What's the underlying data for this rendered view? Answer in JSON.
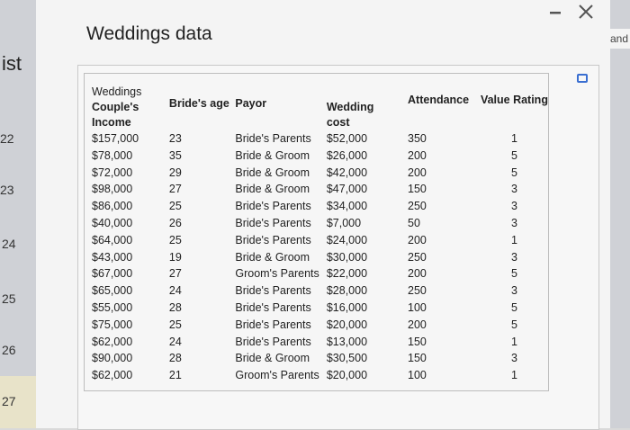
{
  "background": {
    "left_heading": "ist",
    "left_numbers": [
      "22",
      "23",
      "24",
      "25",
      "26",
      "27"
    ],
    "right_peek": "and"
  },
  "window": {
    "minimize_icon": "minimize-icon",
    "close_icon": "close-icon"
  },
  "dialog": {
    "title": "Weddings data"
  },
  "table": {
    "headers": {
      "income": [
        "Weddings",
        "Couple's",
        "Income"
      ],
      "age": "Bride's age",
      "payor": "Payor",
      "cost": [
        "Wedding",
        "cost"
      ],
      "attendance": "Attendance",
      "rating": "Value Rating"
    },
    "rows": [
      {
        "income": "$157,000",
        "age": "23",
        "payor": "Bride's Parents",
        "cost": "$52,000",
        "attendance": "350",
        "rating": "1"
      },
      {
        "income": "$78,000",
        "age": "35",
        "payor": "Bride & Groom",
        "cost": "$26,000",
        "attendance": "200",
        "rating": "5"
      },
      {
        "income": "$72,000",
        "age": "29",
        "payor": "Bride & Groom",
        "cost": "$42,000",
        "attendance": "200",
        "rating": "5"
      },
      {
        "income": "$98,000",
        "age": "27",
        "payor": "Bride & Groom",
        "cost": "$47,000",
        "attendance": "150",
        "rating": "3"
      },
      {
        "income": "$86,000",
        "age": "25",
        "payor": "Bride's Parents",
        "cost": "$34,000",
        "attendance": "250",
        "rating": "3"
      },
      {
        "income": "$40,000",
        "age": "26",
        "payor": "Bride's Parents",
        "cost": "$7,000",
        "attendance": "50",
        "rating": "3"
      },
      {
        "income": "$64,000",
        "age": "25",
        "payor": "Bride's Parents",
        "cost": "$24,000",
        "attendance": "200",
        "rating": "1"
      },
      {
        "income": "$43,000",
        "age": "19",
        "payor": "Bride & Groom",
        "cost": "$30,000",
        "attendance": "250",
        "rating": "3"
      },
      {
        "income": "$67,000",
        "age": "27",
        "payor": "Groom's Parents",
        "cost": "$22,000",
        "attendance": "200",
        "rating": "5"
      },
      {
        "income": "$65,000",
        "age": "24",
        "payor": "Bride's Parents",
        "cost": "$28,000",
        "attendance": "250",
        "rating": "3"
      },
      {
        "income": "$55,000",
        "age": "28",
        "payor": "Bride's Parents",
        "cost": "$16,000",
        "attendance": "100",
        "rating": "5"
      },
      {
        "income": "$75,000",
        "age": "25",
        "payor": "Bride's Parents",
        "cost": "$20,000",
        "attendance": "200",
        "rating": "5"
      },
      {
        "income": "$62,000",
        "age": "24",
        "payor": "Bride's Parents",
        "cost": "$13,000",
        "attendance": "150",
        "rating": "1"
      },
      {
        "income": "$90,000",
        "age": "28",
        "payor": "Bride & Groom",
        "cost": "$30,500",
        "attendance": "150",
        "rating": "3"
      },
      {
        "income": "$62,000",
        "age": "21",
        "payor": "Groom's Parents",
        "cost": "$20,000",
        "attendance": "100",
        "rating": "1"
      }
    ]
  },
  "panel": {
    "expand_icon": "expand-icon"
  }
}
